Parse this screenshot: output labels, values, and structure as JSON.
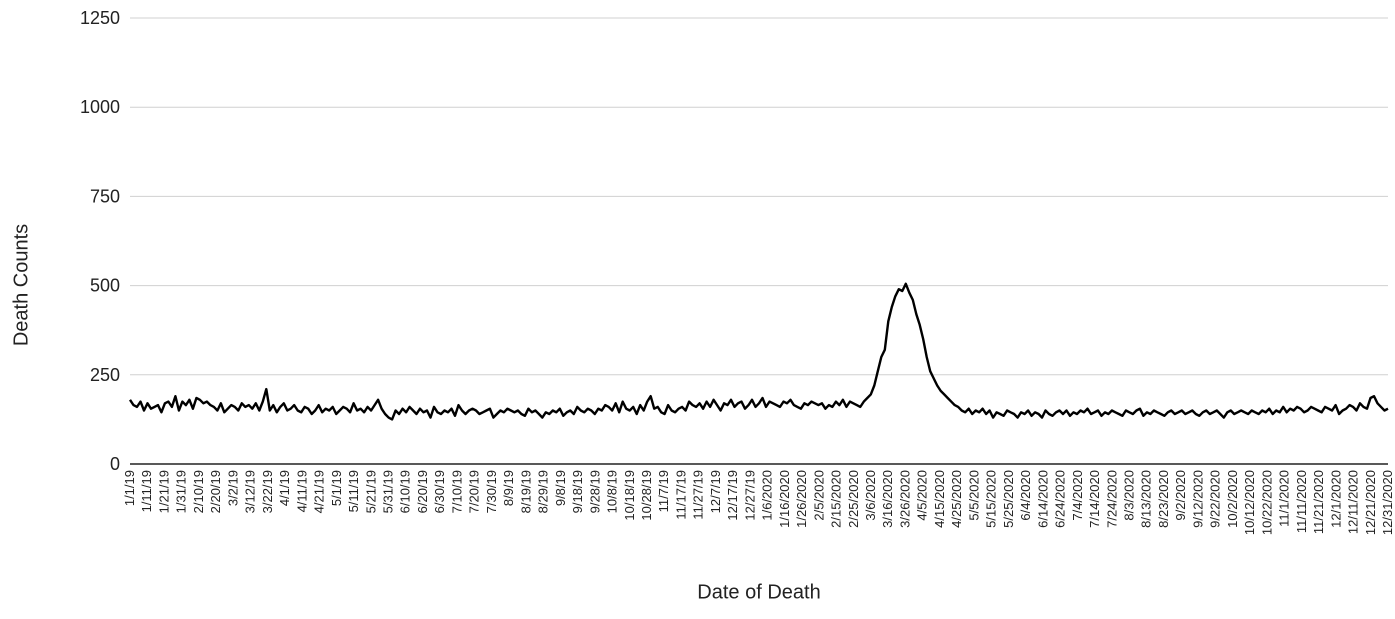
{
  "chart_data": {
    "type": "line",
    "title": "",
    "xlabel": "Date of Death",
    "ylabel": "Death Counts",
    "ylim": [
      0,
      1250
    ],
    "yticks": [
      0,
      250,
      500,
      750,
      1000,
      1250
    ],
    "grid": true,
    "legend": "none",
    "line_color": "#000000",
    "x_start": "1/1/19",
    "x_end": "12/31/2020",
    "xticks": [
      "1/1/19",
      "1/11/19",
      "1/21/19",
      "1/31/19",
      "2/10/19",
      "2/20/19",
      "3/2/19",
      "3/12/19",
      "3/22/19",
      "4/1/19",
      "4/11/19",
      "4/21/19",
      "5/1/19",
      "5/11/19",
      "5/21/19",
      "5/31/19",
      "6/10/19",
      "6/20/19",
      "6/30/19",
      "7/10/19",
      "7/20/19",
      "7/30/19",
      "8/9/19",
      "8/19/19",
      "8/29/19",
      "9/8/19",
      "9/18/19",
      "9/28/19",
      "10/8/19",
      "10/18/19",
      "10/28/19",
      "11/7/19",
      "11/17/19",
      "11/27/19",
      "12/7/19",
      "12/17/19",
      "12/27/19",
      "1/6/2020",
      "1/16/2020",
      "1/26/2020",
      "2/5/2020",
      "2/15/2020",
      "2/25/2020",
      "3/6/2020",
      "3/16/2020",
      "3/26/2020",
      "4/5/2020",
      "4/15/2020",
      "4/25/2020",
      "5/5/2020",
      "5/15/2020",
      "5/25/2020",
      "6/4/2020",
      "6/14/2020",
      "6/24/2020",
      "7/4/2020",
      "7/14/2020",
      "7/24/2020",
      "8/3/2020",
      "8/13/2020",
      "8/23/2020",
      "9/2/2020",
      "9/12/2020",
      "9/22/2020",
      "10/2/2020",
      "10/12/2020",
      "10/22/2020",
      "11/1/2020",
      "11/11/2020",
      "11/21/2020",
      "12/1/2020",
      "12/11/2020",
      "12/21/2020",
      "12/31/2020"
    ],
    "series": [
      {
        "values": [
          180,
          165,
          160,
          175,
          150,
          170,
          155,
          160,
          165,
          145,
          170,
          175,
          160,
          190,
          150,
          175,
          165,
          180,
          155,
          185,
          180,
          170,
          175,
          165,
          160,
          150,
          170,
          145,
          155,
          165,
          160,
          150,
          170,
          160,
          165,
          155,
          170,
          150,
          175,
          210,
          150,
          165,
          145,
          160,
          170,
          150,
          155,
          165,
          150,
          145,
          160,
          155,
          140,
          150,
          165,
          145,
          155,
          150,
          160,
          140,
          150,
          160,
          155,
          145,
          170,
          150,
          155,
          145,
          160,
          150,
          165,
          180,
          155,
          140,
          130,
          125,
          150,
          140,
          155,
          145,
          160,
          150,
          140,
          155,
          145,
          150,
          130,
          160,
          145,
          140,
          150,
          145,
          155,
          135,
          165,
          150,
          140,
          150,
          155,
          150,
          140,
          145,
          150,
          155,
          130,
          140,
          150,
          145,
          155,
          150,
          145,
          150,
          140,
          135,
          155,
          145,
          150,
          140,
          130,
          145,
          140,
          150,
          145,
          155,
          135,
          145,
          150,
          140,
          160,
          150,
          145,
          155,
          150,
          140,
          155,
          150,
          165,
          160,
          150,
          170,
          145,
          175,
          155,
          150,
          160,
          140,
          165,
          150,
          175,
          190,
          155,
          160,
          145,
          140,
          165,
          150,
          145,
          155,
          160,
          150,
          175,
          165,
          160,
          170,
          155,
          175,
          160,
          180,
          165,
          150,
          170,
          165,
          180,
          160,
          170,
          175,
          155,
          165,
          180,
          160,
          170,
          185,
          160,
          175,
          170,
          165,
          160,
          175,
          170,
          180,
          165,
          160,
          155,
          170,
          165,
          175,
          170,
          165,
          170,
          155,
          165,
          160,
          175,
          165,
          180,
          160,
          175,
          170,
          165,
          160,
          175,
          185,
          195,
          220,
          260,
          300,
          320,
          400,
          440,
          470,
          490,
          485,
          505,
          480,
          460,
          420,
          390,
          350,
          300,
          260,
          240,
          220,
          205,
          195,
          185,
          175,
          165,
          160,
          150,
          145,
          155,
          140,
          150,
          145,
          155,
          140,
          150,
          130,
          145,
          140,
          135,
          150,
          145,
          140,
          130,
          145,
          140,
          150,
          135,
          145,
          140,
          130,
          150,
          140,
          135,
          145,
          150,
          140,
          150,
          135,
          145,
          140,
          150,
          145,
          155,
          140,
          145,
          150,
          135,
          145,
          140,
          150,
          145,
          140,
          135,
          150,
          145,
          140,
          150,
          155,
          135,
          145,
          140,
          150,
          145,
          140,
          135,
          145,
          150,
          140,
          145,
          150,
          140,
          145,
          150,
          140,
          135,
          145,
          150,
          140,
          145,
          150,
          140,
          130,
          145,
          150,
          140,
          145,
          150,
          145,
          140,
          150,
          145,
          140,
          150,
          145,
          155,
          140,
          150,
          145,
          160,
          145,
          155,
          150,
          160,
          155,
          145,
          150,
          160,
          155,
          150,
          145,
          160,
          155,
          150,
          165,
          140,
          150,
          155,
          165,
          160,
          150,
          170,
          160,
          155,
          185,
          190,
          170,
          160,
          150,
          155
        ]
      }
    ]
  }
}
